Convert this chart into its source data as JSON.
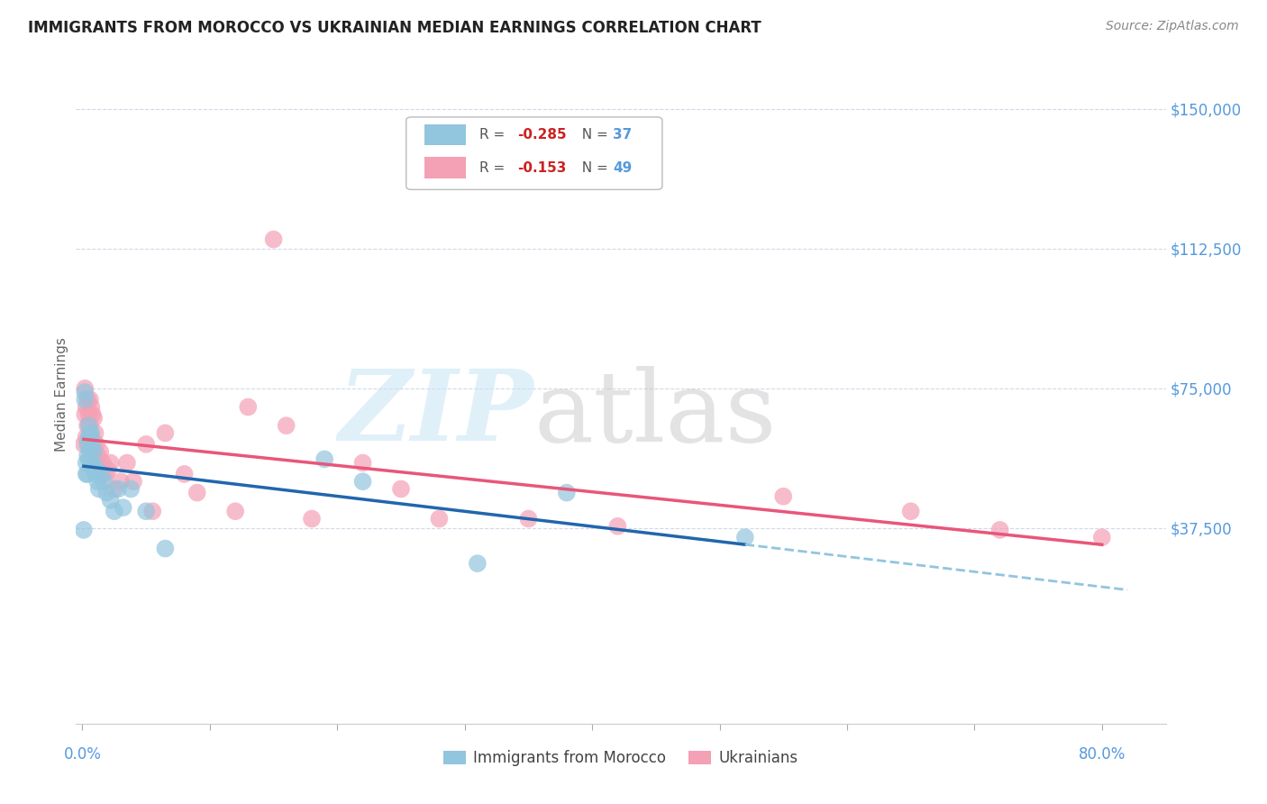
{
  "title": "IMMIGRANTS FROM MOROCCO VS UKRAINIAN MEDIAN EARNINGS CORRELATION CHART",
  "source": "Source: ZipAtlas.com",
  "ylabel": "Median Earnings",
  "ytick_values": [
    0,
    37500,
    75000,
    112500,
    150000
  ],
  "ytick_labels": [
    "",
    "$37,500",
    "$75,000",
    "$112,500",
    "$150,000"
  ],
  "ylim": [
    -15000,
    162000
  ],
  "xlim": [
    -0.005,
    0.85
  ],
  "morocco_color": "#92c5de",
  "ukraine_color": "#f4a0b5",
  "morocco_line_color": "#2166ac",
  "ukraine_line_color": "#e8567a",
  "morocco_dash_color": "#92c5de",
  "background_color": "#ffffff",
  "grid_color": "#d0d8e8",
  "axis_label_color": "#5599dd",
  "morocco_x": [
    0.001,
    0.002,
    0.002,
    0.003,
    0.003,
    0.004,
    0.004,
    0.004,
    0.005,
    0.005,
    0.005,
    0.006,
    0.006,
    0.007,
    0.007,
    0.008,
    0.009,
    0.009,
    0.01,
    0.011,
    0.012,
    0.013,
    0.015,
    0.017,
    0.019,
    0.022,
    0.025,
    0.028,
    0.032,
    0.038,
    0.05,
    0.065,
    0.19,
    0.22,
    0.31,
    0.38,
    0.52
  ],
  "morocco_y": [
    37000,
    74000,
    72000,
    55000,
    52000,
    60000,
    57000,
    52000,
    65000,
    62000,
    56000,
    62000,
    58000,
    63000,
    55000,
    60000,
    58000,
    53000,
    54000,
    52000,
    50000,
    48000,
    52000,
    50000,
    47000,
    45000,
    42000,
    48000,
    43000,
    48000,
    42000,
    32000,
    56000,
    50000,
    28000,
    47000,
    35000
  ],
  "ukraine_x": [
    0.001,
    0.002,
    0.002,
    0.003,
    0.003,
    0.004,
    0.004,
    0.005,
    0.005,
    0.006,
    0.006,
    0.007,
    0.007,
    0.008,
    0.008,
    0.009,
    0.009,
    0.01,
    0.011,
    0.012,
    0.013,
    0.014,
    0.016,
    0.018,
    0.02,
    0.022,
    0.025,
    0.03,
    0.035,
    0.04,
    0.05,
    0.055,
    0.065,
    0.08,
    0.09,
    0.12,
    0.13,
    0.15,
    0.16,
    0.18,
    0.22,
    0.25,
    0.28,
    0.35,
    0.42,
    0.55,
    0.65,
    0.72,
    0.8
  ],
  "ukraine_y": [
    60000,
    75000,
    68000,
    70000,
    62000,
    72000,
    65000,
    68000,
    60000,
    72000,
    65000,
    70000,
    62000,
    68000,
    58000,
    67000,
    57000,
    63000,
    60000,
    57000,
    55000,
    58000,
    55000,
    52000,
    53000,
    55000,
    48000,
    50000,
    55000,
    50000,
    60000,
    42000,
    63000,
    52000,
    47000,
    42000,
    70000,
    115000,
    65000,
    40000,
    55000,
    48000,
    40000,
    40000,
    38000,
    46000,
    42000,
    37000,
    35000
  ]
}
